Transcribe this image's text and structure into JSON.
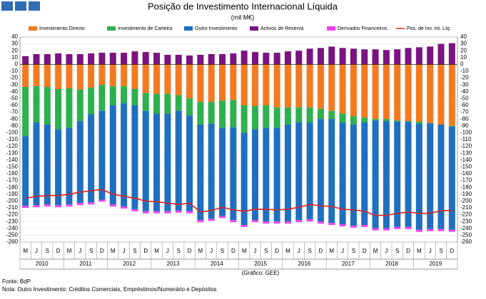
{
  "chart_data": {
    "type": "bar",
    "title": "Posição de Investimento Internacional Líquida",
    "subtitle": "(mil M€)",
    "credit": "(Gráfico: GEE)",
    "source": "Fonte: BdP",
    "note": "Nota: Outro Investimento: Créditos Comerciais, Empréstimos/Numerário e Depósitos",
    "stacked": true,
    "grid": true,
    "categories": [
      "M",
      "J",
      "S",
      "D",
      "M",
      "J",
      "S",
      "D",
      "M",
      "J",
      "S",
      "D",
      "M",
      "J",
      "S",
      "D",
      "M",
      "J",
      "S",
      "D",
      "M",
      "J",
      "S",
      "D",
      "M",
      "J",
      "S",
      "D",
      "M",
      "J",
      "S",
      "D",
      "M",
      "J",
      "S",
      "D",
      "M",
      "J",
      "S",
      "D"
    ],
    "years": [
      "2010",
      "2011",
      "2012",
      "2013",
      "2014",
      "2015",
      "2016",
      "2017",
      "2018",
      "2019"
    ],
    "ylim": [
      -260,
      40
    ],
    "yticks": [
      -260,
      -250,
      -240,
      -230,
      -220,
      -210,
      -200,
      -190,
      -180,
      -170,
      -160,
      -150,
      -140,
      -130,
      -120,
      -110,
      -100,
      -90,
      -80,
      -70,
      -60,
      -50,
      -40,
      -30,
      -20,
      -10,
      0,
      10,
      20,
      30,
      40
    ],
    "series": [
      {
        "name": "Investimento Directo",
        "color": "#f47a20",
        "values": [
          -33,
          -32,
          -33,
          -36,
          -35,
          -37,
          -34,
          -30,
          -32,
          -32,
          -36,
          -42,
          -43,
          -43,
          -45,
          -50,
          -55,
          -55,
          -53,
          -52,
          -60,
          -61,
          -60,
          -63,
          -63,
          -63,
          -63,
          -65,
          -68,
          -72,
          -76,
          -78,
          -80,
          -80,
          -82,
          -83,
          -84,
          -86,
          -88,
          -90
        ]
      },
      {
        "name": "Investimento de Carteira",
        "color": "#2eb04f",
        "values": [
          -72,
          -53,
          -55,
          -59,
          -58,
          -46,
          -39,
          -38,
          -28,
          -25,
          -24,
          -26,
          -29,
          -29,
          -23,
          -25,
          -33,
          -32,
          -40,
          -40,
          -40,
          -34,
          -33,
          -30,
          -25,
          -22,
          -22,
          -15,
          -12,
          -13,
          -12,
          -7,
          -2,
          -3,
          -2,
          -1,
          -3,
          0,
          0,
          -1
        ]
      },
      {
        "name": "Outro Investimento",
        "color": "#1f6fc0",
        "values": [
          -102,
          -121,
          -117,
          -111,
          -112,
          -120,
          -129,
          -130,
          -145,
          -151,
          -152,
          -147,
          -143,
          -143,
          -146,
          -140,
          -140,
          -139,
          -129,
          -136,
          -135,
          -133,
          -137,
          -137,
          -142,
          -143,
          -142,
          -150,
          -152,
          -149,
          -148,
          -150,
          -158,
          -157,
          -154,
          -154,
          -155,
          -155,
          -153,
          -151
        ]
      },
      {
        "name": "Activos de Reserva",
        "color": "#7a1480",
        "values": [
          12,
          15,
          15,
          16,
          15,
          15,
          16,
          17,
          17,
          17,
          19,
          18,
          17,
          14,
          14,
          13,
          14,
          15,
          15,
          16,
          20,
          18,
          17,
          17,
          19,
          20,
          23,
          24,
          26,
          24,
          23,
          22,
          22,
          21,
          22,
          24,
          25,
          26,
          30,
          31
        ]
      },
      {
        "name": "Derivados Financeiros",
        "color": "#f040f0",
        "values": [
          -3,
          -3,
          -3,
          -3,
          -3,
          -3,
          -3,
          -3,
          -3,
          -3,
          -3,
          -3,
          -3,
          -3,
          -3,
          -3,
          -3,
          -3,
          -3,
          -3,
          -3,
          -3,
          -3,
          -3,
          -3,
          -3,
          -3,
          -3,
          -3,
          -3,
          -3,
          -3,
          -3,
          -3,
          -3,
          -3,
          -3,
          -3,
          -3,
          -3
        ]
      },
      {
        "name": "Pos. de Inv. Int. Líq.",
        "color": "#e0201a",
        "type": "line",
        "values": [
          -196,
          -193,
          -192,
          -192,
          -190,
          -187,
          -185,
          -183,
          -190,
          -193,
          -196,
          -200,
          -201,
          -203,
          -205,
          -203,
          -216,
          -214,
          -209,
          -213,
          -215,
          -212,
          -212,
          -213,
          -212,
          -209,
          -205,
          -207,
          -208,
          -212,
          -213,
          -215,
          -221,
          -221,
          -218,
          -216,
          -218,
          -218,
          -214,
          -214
        ]
      }
    ]
  }
}
